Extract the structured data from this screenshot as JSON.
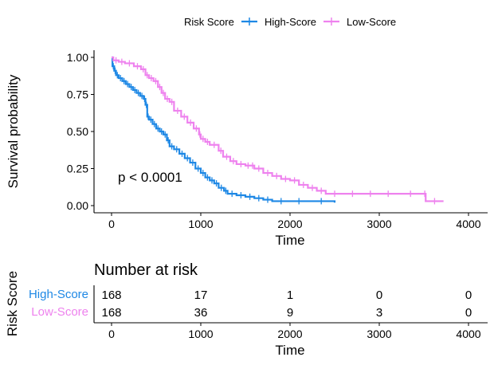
{
  "chart_data": {
    "type": "line",
    "legend": {
      "title": "Risk Score",
      "position": "top",
      "entries": [
        "High-Score",
        "Low-Score"
      ]
    },
    "xlabel": "Time",
    "ylabel": "Survival probability",
    "xlim": [
      0,
      4000
    ],
    "ylim": [
      0,
      1
    ],
    "xticks": [
      "0",
      "1000",
      "2000",
      "3000",
      "4000"
    ],
    "yticks": [
      "0.00",
      "0.25",
      "0.50",
      "0.75",
      "1.00"
    ],
    "grid": false,
    "annotation": "p < 0.0001",
    "colors": {
      "High-Score": "#1E88E5",
      "Low-Score": "#EE82EE"
    },
    "series": [
      {
        "name": "High-Score",
        "x": [
          0,
          10,
          30,
          50,
          80,
          120,
          160,
          200,
          240,
          280,
          320,
          360,
          380,
          400,
          420,
          460,
          500,
          540,
          580,
          620,
          650,
          700,
          760,
          820,
          880,
          940,
          1000,
          1050,
          1100,
          1150,
          1200,
          1260,
          1300,
          1400,
          1500,
          1600,
          1700,
          1800,
          2000,
          2200,
          2500
        ],
        "y": [
          1.0,
          0.94,
          0.91,
          0.88,
          0.86,
          0.84,
          0.82,
          0.8,
          0.78,
          0.76,
          0.74,
          0.72,
          0.68,
          0.6,
          0.58,
          0.55,
          0.52,
          0.5,
          0.48,
          0.44,
          0.4,
          0.38,
          0.35,
          0.32,
          0.29,
          0.25,
          0.22,
          0.19,
          0.17,
          0.15,
          0.12,
          0.1,
          0.08,
          0.07,
          0.06,
          0.05,
          0.04,
          0.03,
          0.03,
          0.03,
          0.02
        ]
      },
      {
        "name": "Low-Score",
        "x": [
          0,
          20,
          80,
          150,
          250,
          330,
          380,
          420,
          470,
          520,
          560,
          600,
          650,
          700,
          780,
          850,
          920,
          980,
          1000,
          1050,
          1100,
          1200,
          1250,
          1330,
          1400,
          1500,
          1560,
          1600,
          1700,
          1800,
          1900,
          2000,
          2100,
          2200,
          2300,
          2400,
          2600,
          2800,
          3000,
          3200,
          3500,
          3520,
          3720
        ],
        "y": [
          1.0,
          0.98,
          0.97,
          0.96,
          0.94,
          0.92,
          0.88,
          0.86,
          0.84,
          0.8,
          0.76,
          0.72,
          0.7,
          0.64,
          0.6,
          0.56,
          0.52,
          0.48,
          0.45,
          0.43,
          0.41,
          0.37,
          0.33,
          0.3,
          0.28,
          0.27,
          0.27,
          0.25,
          0.22,
          0.2,
          0.18,
          0.17,
          0.14,
          0.12,
          0.1,
          0.08,
          0.08,
          0.08,
          0.08,
          0.08,
          0.08,
          0.03,
          0.03
        ]
      }
    ],
    "risk_table": {
      "title": "Number at risk",
      "ylabel": "Risk Score",
      "xlabel": "Time",
      "times": [
        "0",
        "1000",
        "2000",
        "3000",
        "4000"
      ],
      "rows": [
        {
          "name": "High-Score",
          "counts": [
            "168",
            "17",
            "1",
            "0",
            "0"
          ]
        },
        {
          "name": "Low-Score",
          "counts": [
            "168",
            "36",
            "9",
            "3",
            "0"
          ]
        }
      ]
    }
  }
}
